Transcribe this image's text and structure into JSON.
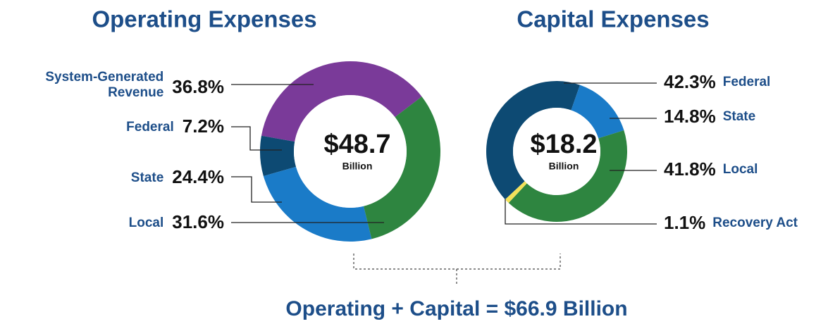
{
  "chart_data": [
    {
      "type": "pie",
      "title": "Operating Expenses",
      "categories": [
        "System-Generated Revenue",
        "Federal",
        "State",
        "Local"
      ],
      "values": [
        36.8,
        7.2,
        24.4,
        31.6
      ],
      "value_labels": [
        "36.8%",
        "7.2%",
        "24.4%",
        "31.6%"
      ],
      "colors": [
        "#7a3a99",
        "#0d4a73",
        "#1a7bc8",
        "#2e8540"
      ],
      "center_label": "$48.7",
      "center_sublabel": "Billion"
    },
    {
      "type": "pie",
      "title": "Capital Expenses",
      "categories": [
        "Federal",
        "State",
        "Local",
        "Recovery Act"
      ],
      "values": [
        42.3,
        14.8,
        41.8,
        1.1
      ],
      "value_labels": [
        "42.3%",
        "14.8%",
        "41.8%",
        "1.1%"
      ],
      "colors": [
        "#0d4a73",
        "#1a7bc8",
        "#2e8540",
        "#f2e15a"
      ],
      "center_label": "$18.2",
      "center_sublabel": "Billion"
    }
  ],
  "footer": "Operating + Capital = $66.9 Billion"
}
